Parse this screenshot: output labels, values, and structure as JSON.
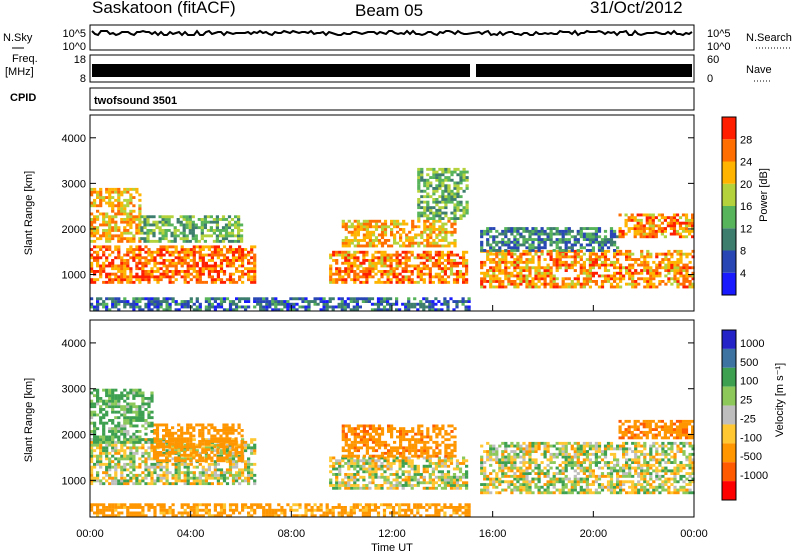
{
  "header": {
    "station": "Saskatoon (fitACF)",
    "beam": "Beam 05",
    "date": "31/Oct/2012"
  },
  "noise_panel": {
    "left_label": "N.Sky",
    "right_label": "N.Search",
    "right_ticks": [
      "10^5",
      "10^0"
    ],
    "left_ticks": [
      "10^5",
      "10^0"
    ]
  },
  "freq_panel": {
    "left_label_1": "Freq.",
    "left_label_2": "[MHz]",
    "left_ticks": [
      "18",
      "8"
    ],
    "right_label": "Nave",
    "right_ticks": [
      "60",
      "0"
    ]
  },
  "cpid_panel": {
    "label": "CPID",
    "program": "twofsound 3501"
  },
  "x_axis": {
    "label": "Time UT",
    "ticks": [
      "00:00",
      "04:00",
      "08:00",
      "12:00",
      "16:00",
      "20:00",
      "00:00"
    ]
  },
  "colors": {
    "power_scale": [
      "#1a1aff",
      "#2846b4",
      "#3c7d6e",
      "#58b45a",
      "#b4d23c",
      "#ffb400",
      "#ff6e00",
      "#ff1e00"
    ],
    "velocity_scale": [
      "#2323c8",
      "#3c73a0",
      "#3ca050",
      "#8cc85a",
      "#bebebe",
      "#ffc832",
      "#ff9600",
      "#ff5a00",
      "#ff0000"
    ]
  },
  "chart_data": [
    {
      "type": "heatmap",
      "name": "power",
      "xlabel": "Time UT",
      "ylabel": "Slant Range [km]",
      "xlim": [
        0,
        24
      ],
      "ylim": [
        200,
        4500
      ],
      "yticks": [
        "1000",
        "2000",
        "3000",
        "4000"
      ],
      "colorbar": {
        "label": "Power [dB]",
        "range": [
          0,
          32
        ],
        "ticks": [
          "4",
          "8",
          "12",
          "16",
          "20",
          "24",
          "28"
        ]
      },
      "regions": [
        {
          "t": [
            0.0,
            6.5
          ],
          "r": [
            800,
            1600
          ],
          "level": 26
        },
        {
          "t": [
            0.0,
            2.0
          ],
          "r": [
            1700,
            2900
          ],
          "level": 22
        },
        {
          "t": [
            2.0,
            6.0
          ],
          "r": [
            1700,
            2300
          ],
          "level": 14
        },
        {
          "t": [
            9.5,
            15.0
          ],
          "r": [
            800,
            1500
          ],
          "level": 25
        },
        {
          "t": [
            10.0,
            14.5
          ],
          "r": [
            1600,
            2200
          ],
          "level": 22
        },
        {
          "t": [
            13.0,
            15.0
          ],
          "r": [
            2200,
            3300
          ],
          "level": 14
        },
        {
          "t": [
            15.5,
            24.0
          ],
          "r": [
            700,
            1500
          ],
          "level": 24
        },
        {
          "t": [
            15.5,
            21.0
          ],
          "r": [
            1500,
            2000
          ],
          "level": 10
        },
        {
          "t": [
            21.0,
            24.0
          ],
          "r": [
            1800,
            2300
          ],
          "level": 25
        },
        {
          "t": [
            0.0,
            15.0
          ],
          "r": [
            200,
            500
          ],
          "level": 8
        }
      ]
    },
    {
      "type": "heatmap",
      "name": "velocity",
      "xlabel": "Time UT",
      "ylabel": "Slant Range [km]",
      "xlim": [
        0,
        24
      ],
      "ylim": [
        200,
        4500
      ],
      "yticks": [
        "1000",
        "2000",
        "3000",
        "4000"
      ],
      "colorbar": {
        "label": "Velocity [m s⁻¹]",
        "ticks": [
          "1000",
          "500",
          "100",
          "25",
          "-25",
          "-100",
          "-500",
          "-1000"
        ]
      },
      "regions": [
        {
          "t": [
            0.0,
            6.5
          ],
          "r": [
            900,
            1900
          ],
          "value": 0
        },
        {
          "t": [
            2.5,
            6.0
          ],
          "r": [
            1400,
            2200
          ],
          "value": -300
        },
        {
          "t": [
            0.0,
            2.5
          ],
          "r": [
            1800,
            3000
          ],
          "value": 150
        },
        {
          "t": [
            9.5,
            15.0
          ],
          "r": [
            800,
            1500
          ],
          "value": 0
        },
        {
          "t": [
            10.0,
            14.5
          ],
          "r": [
            1500,
            2200
          ],
          "value": -400
        },
        {
          "t": [
            15.5,
            24.0
          ],
          "r": [
            700,
            1800
          ],
          "value": 0
        },
        {
          "t": [
            21.0,
            24.0
          ],
          "r": [
            1900,
            2300
          ],
          "value": -400
        },
        {
          "t": [
            0.0,
            15.0
          ],
          "r": [
            200,
            500
          ],
          "value": -200
        }
      ]
    }
  ]
}
